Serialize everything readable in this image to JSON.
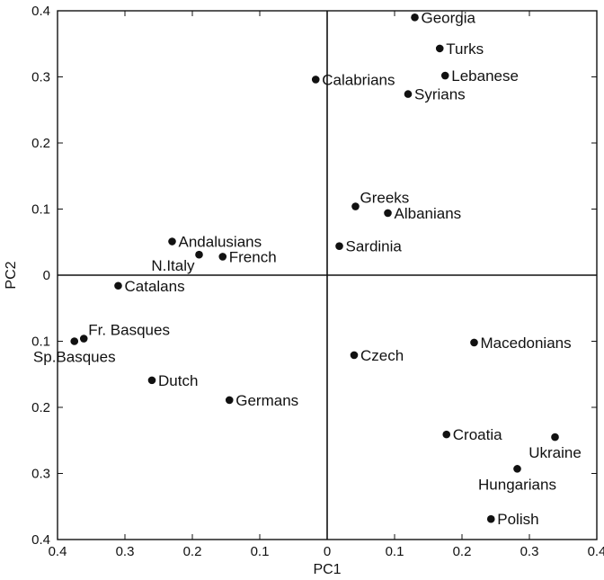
{
  "chart_data": {
    "type": "scatter",
    "xlabel": "PC1",
    "ylabel": "PC2",
    "xlim": [
      -0.4,
      0.4
    ],
    "ylim": [
      -0.4,
      0.4
    ],
    "x_ticks": [
      -0.4,
      -0.3,
      -0.2,
      -0.1,
      0,
      0.1,
      0.2,
      0.3,
      0.4
    ],
    "x_tick_labels": [
      "0.4",
      "0.3",
      "0.2",
      "0.1",
      "0",
      "0.1",
      "0.2",
      "0.3",
      "0.4"
    ],
    "y_ticks": [
      0.4,
      0.3,
      0.2,
      0.1,
      0,
      -0.1,
      -0.2,
      -0.3,
      -0.4
    ],
    "y_tick_labels": [
      "0.4",
      "0.3",
      "0.2",
      "0.1",
      "0",
      "0.1",
      "0.2",
      "0.3",
      "0.4"
    ],
    "grid": false,
    "reference_lines": {
      "x": 0,
      "y": 0
    },
    "points": [
      {
        "label": "Georgia",
        "x": 0.13,
        "y": 0.39,
        "label_side": "right"
      },
      {
        "label": "Turks",
        "x": 0.167,
        "y": 0.343,
        "label_side": "right"
      },
      {
        "label": "Lebanese",
        "x": 0.175,
        "y": 0.302,
        "label_side": "right"
      },
      {
        "label": "Calabrians",
        "x": -0.017,
        "y": 0.296,
        "label_side": "right"
      },
      {
        "label": "Syrians",
        "x": 0.12,
        "y": 0.274,
        "label_side": "right"
      },
      {
        "label": "Greeks",
        "x": 0.042,
        "y": 0.104,
        "label_side": "upper-right"
      },
      {
        "label": "Albanians",
        "x": 0.09,
        "y": 0.094,
        "label_side": "right"
      },
      {
        "label": "Andalusians",
        "x": -0.23,
        "y": 0.051,
        "label_side": "right"
      },
      {
        "label": "Sardinia",
        "x": 0.018,
        "y": 0.044,
        "label_side": "right"
      },
      {
        "label": "N.Italy",
        "x": -0.19,
        "y": 0.031,
        "label_side": "below-left"
      },
      {
        "label": "French",
        "x": -0.155,
        "y": 0.028,
        "label_side": "right"
      },
      {
        "label": "Catalans",
        "x": -0.31,
        "y": -0.016,
        "label_side": "right"
      },
      {
        "label": "Fr. Basques",
        "x": -0.361,
        "y": -0.096,
        "label_side": "upper-right"
      },
      {
        "label": "Sp.Basques",
        "x": -0.375,
        "y": -0.1,
        "label_side": "below"
      },
      {
        "label": "Macedonians",
        "x": 0.218,
        "y": -0.102,
        "label_side": "right"
      },
      {
        "label": "Czech",
        "x": 0.04,
        "y": -0.121,
        "label_side": "right"
      },
      {
        "label": "Dutch",
        "x": -0.26,
        "y": -0.159,
        "label_side": "right"
      },
      {
        "label": "Germans",
        "x": -0.145,
        "y": -0.189,
        "label_side": "right"
      },
      {
        "label": "Croatia",
        "x": 0.177,
        "y": -0.241,
        "label_side": "right"
      },
      {
        "label": "Ukraine",
        "x": 0.338,
        "y": -0.245,
        "label_side": "below"
      },
      {
        "label": "Hungarians",
        "x": 0.282,
        "y": -0.293,
        "label_side": "below"
      },
      {
        "label": "Polish",
        "x": 0.243,
        "y": -0.369,
        "label_side": "right"
      }
    ]
  }
}
